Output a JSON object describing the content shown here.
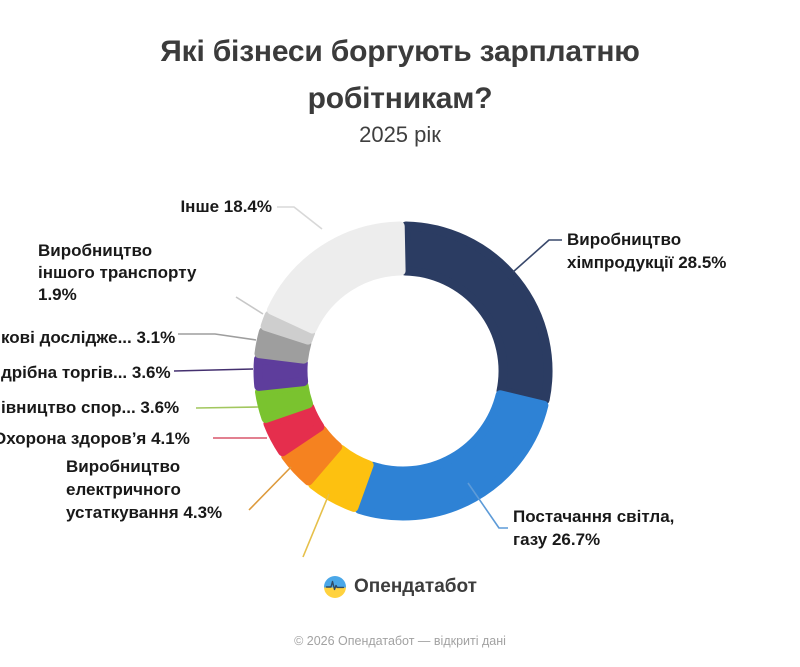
{
  "header": {
    "title": "Які бізнеси боргують зарплатню робітникам?",
    "subtitle": "2025 рік"
  },
  "chart_data": {
    "type": "pie",
    "variant": "donut",
    "title": "Які бізнеси боргують зарплатню робітникам?",
    "subtitle": "2025 рік",
    "unit": "%",
    "start_angle_deg": 0,
    "direction": "clockwise",
    "segments": [
      {
        "id": "chem",
        "label": "Виробництво хімпродукції",
        "value": 28.5,
        "color": "#2b3c62",
        "line_color": "#39486b"
      },
      {
        "id": "gas",
        "label": "Постачання світла, газу",
        "value": 26.7,
        "color": "#2e82d5",
        "line_color": "#5d9bd8"
      },
      {
        "id": "unlabeled",
        "label": "",
        "value": 5.8,
        "color": "#fdc110",
        "line_color": "#e6c04a"
      },
      {
        "id": "electrical",
        "label": "Виробництво електричного устаткування",
        "value": 4.3,
        "color": "#f58220",
        "line_color": "#dd9a3c"
      },
      {
        "id": "health",
        "label": "Охорона здоров’я",
        "value": 4.1,
        "color": "#e52e4d",
        "line_color": "#d9566b"
      },
      {
        "id": "construction",
        "label": "івництво спор…",
        "value": 3.6,
        "color": "#7ac32f",
        "line_color": "#a2c75e"
      },
      {
        "id": "retail",
        "label": "дрібна торгів…",
        "value": 3.6,
        "color": "#5e3d9c",
        "line_color": "#44306f"
      },
      {
        "id": "research",
        "label": "кові дослідже…",
        "value": 3.1,
        "color": "#9e9e9e",
        "line_color": "#9e9e9e"
      },
      {
        "id": "transport",
        "label": "Виробництво іншого транспорту",
        "value": 1.9,
        "color": "#cecece",
        "line_color": "#c7c7c7"
      },
      {
        "id": "inshe",
        "label": "Інше",
        "value": 18.4,
        "color": "#ededed",
        "line_color": "#d8d8d8"
      }
    ]
  },
  "callouts": {
    "inshe": [
      "Інше 18.4%"
    ],
    "transport": [
      "Виробництво",
      "іншого транспорту",
      "1.9%"
    ],
    "research": [
      "кові дослідже... 3.1%"
    ],
    "retail": [
      "дрібна торгів... 3.6%"
    ],
    "construction": [
      "івництво спор... 3.6%"
    ],
    "health": [
      "Охорона здоров’я 4.1%"
    ],
    "electrical": [
      "Виробництво",
      "електричного",
      "устаткування 4.3%"
    ],
    "chem": [
      "Виробництво",
      "хімпродукції 28.5%"
    ],
    "gas": [
      "Постачання світла,",
      "газу 26.7%"
    ]
  },
  "footer": {
    "logo_text": "Опендатабот",
    "copyright": "© 2026 Опендатабот — відкриті дані"
  },
  "colors": {
    "background": "#ffffff",
    "title_text": "#3b3b3b",
    "label_text": "#191919",
    "copyright_text": "#a2a2a2",
    "logo_blue": "#4aa7e8",
    "logo_yellow": "#ffd23e",
    "logo_pulse": "#2f4a66"
  }
}
